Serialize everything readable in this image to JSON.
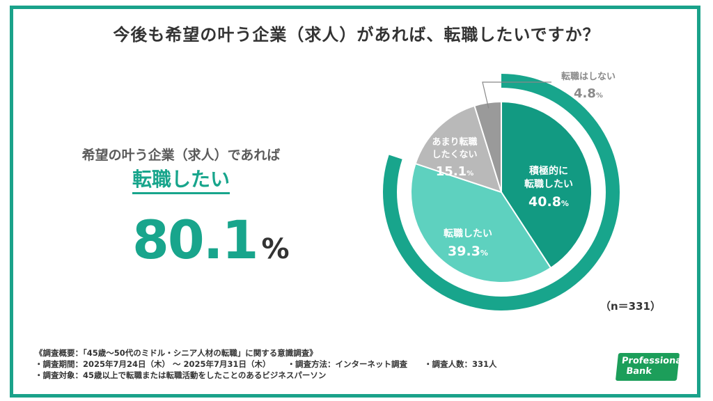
{
  "title": "今後も希望の叶う企業（求人）があれば、転職したいですか？",
  "highlight": {
    "lead": "希望の叶う企業（求人）であれば",
    "emphasis": "転職したい",
    "value": "80.1",
    "unit": "%"
  },
  "sample_size": "（n＝331）",
  "footnotes": {
    "line1": "《調査概要：「45歳～50代のミドル・シニア人材の転職」に関する意識調査》",
    "line2_period": "・調査期間：2025年7月24日（木） ～ 2025年7月31日（木）",
    "line2_method": "・調査方法：インターネット調査",
    "line2_count": "・調査人数：331人",
    "line3": "・調査対象：45歳以上で転職または転職活動をしたことのあるビジネスパーソン"
  },
  "logo": {
    "line1": "Professional",
    "line2": "Bank"
  },
  "colors": {
    "frame": "#1aa28a",
    "accent": "#18a58c",
    "dark_green": "#129a82",
    "light_green": "#5ed1bf",
    "light_gray": "#b9b9b9",
    "dark_gray": "#9a9a9a"
  },
  "chart_data": {
    "type": "pie",
    "title": "今後も希望の叶う企業（求人）があれば、転職したいですか？",
    "unit": "%",
    "slices": [
      {
        "label_lines": [
          "積極的に",
          "転職したい"
        ],
        "value": 40.8,
        "value_text": "40.8",
        "color": "#129a82",
        "group": "want"
      },
      {
        "label_lines": [
          "転職したい"
        ],
        "value": 39.3,
        "value_text": "39.3",
        "color": "#5ed1bf",
        "group": "want"
      },
      {
        "label_lines": [
          "あまり転職",
          "したくない"
        ],
        "value": 15.1,
        "value_text": "15.1",
        "color": "#b9b9b9",
        "group": "not"
      },
      {
        "label_lines": [
          "転職はしない"
        ],
        "value": 4.8,
        "value_text": "4.8",
        "color": "#9a9a9a",
        "group": "not"
      }
    ],
    "outer_ring": {
      "value": 80.1,
      "color": "#18a58c"
    }
  }
}
